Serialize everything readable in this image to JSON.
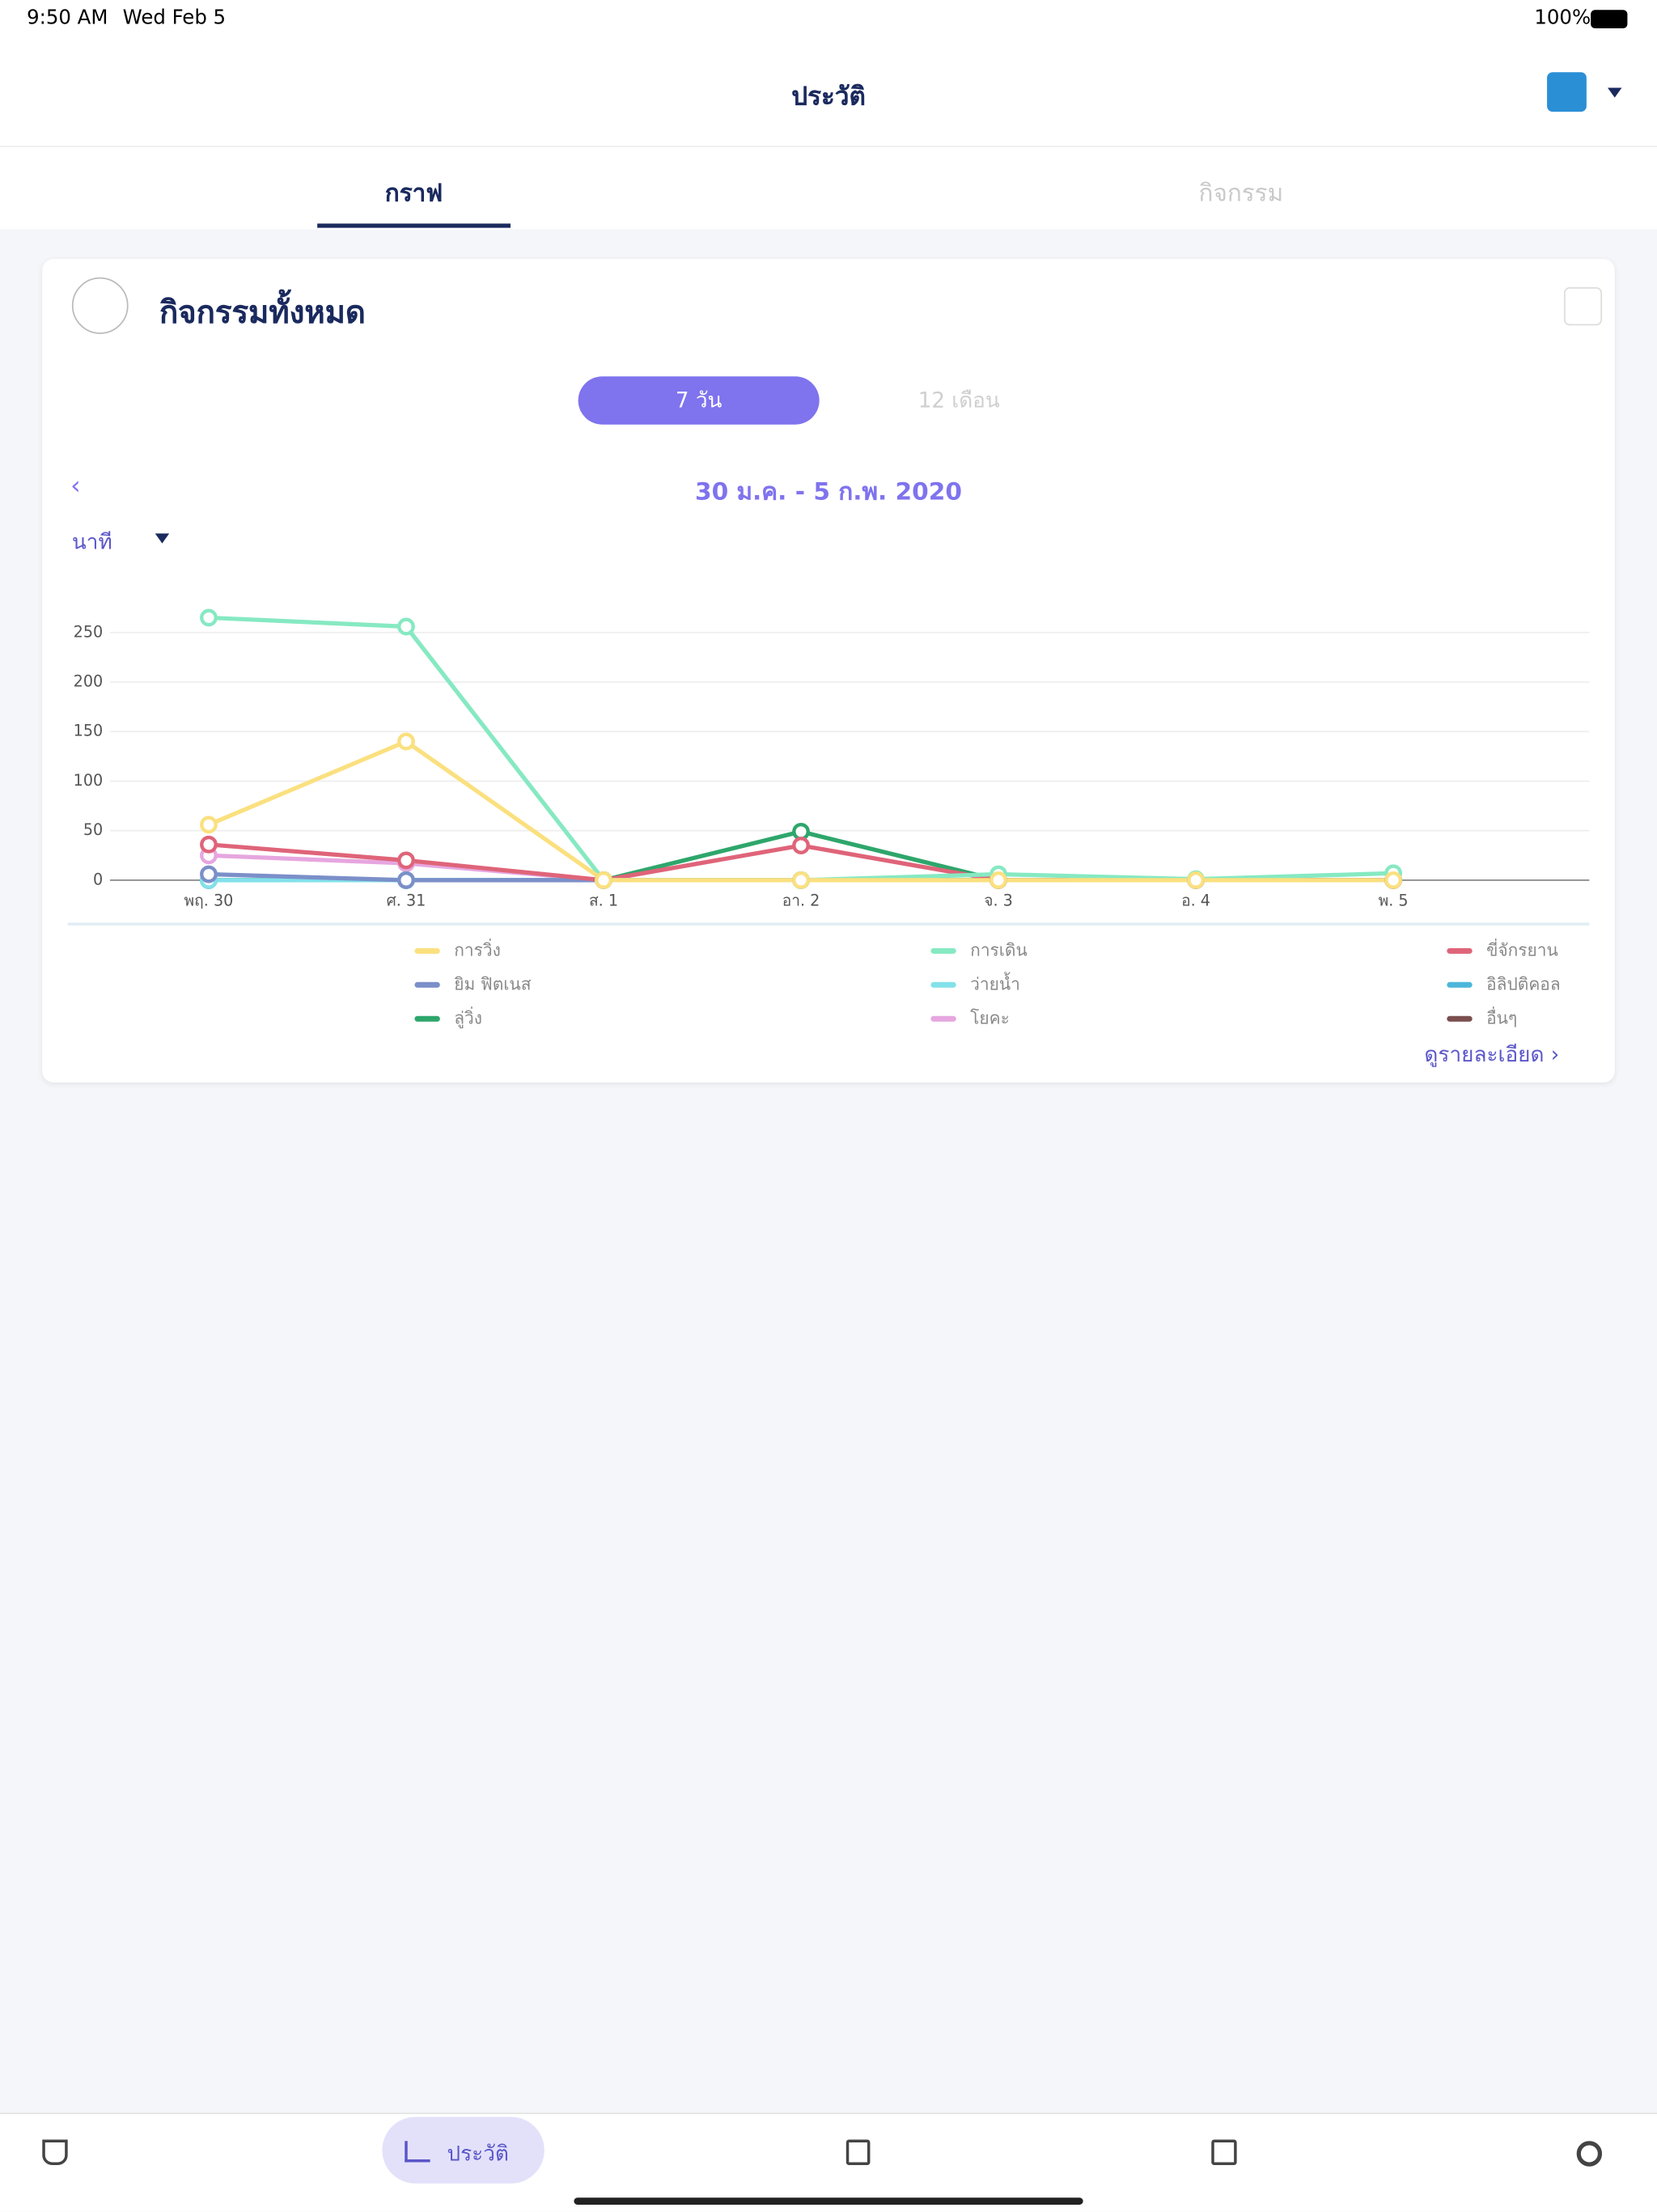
{
  "status_bar": {
    "time": "9:50 AM",
    "date": "Wed Feb 5",
    "battery": "100%"
  },
  "header": {
    "title": "ประวัติ"
  },
  "tabs": [
    "กราฟ",
    "กิจกรรม"
  ],
  "card": {
    "title": "กิจกรรมทั้งหมด",
    "range_options": [
      "7 วัน",
      "12 เดือน"
    ],
    "date_range": "30 ม.ค. - 5 ก.พ. 2020",
    "unit": "นาที",
    "details_link": "ดูรายละเอียด"
  },
  "chart_data": {
    "type": "line",
    "categories": [
      "พฤ. 30",
      "ศ. 31",
      "ส. 1",
      "อา. 2",
      "จ. 3",
      "อ. 4",
      "พ. 5"
    ],
    "ylim": [
      0,
      280
    ],
    "yticks": [
      0,
      50,
      100,
      150,
      200,
      250
    ],
    "grid": true,
    "series": [
      {
        "name": "การวิ่ง",
        "color": "#fbe07f",
        "values": [
          56,
          140,
          0,
          0,
          0,
          0,
          0
        ]
      },
      {
        "name": "การเดิน",
        "color": "#86e9c2",
        "values": [
          265,
          256,
          0,
          0,
          6,
          1,
          7
        ]
      },
      {
        "name": "ขี่จักรยาน",
        "color": "#df6479",
        "values": [
          36,
          20,
          0,
          35,
          0,
          0,
          0
        ]
      },
      {
        "name": "ยิม ฟิตเนส",
        "color": "#7b8fc9",
        "values": [
          6,
          0,
          0,
          0,
          0,
          0,
          0
        ]
      },
      {
        "name": "ว่ายน้ำ",
        "color": "#82e1ea",
        "values": [
          0,
          0,
          0,
          0,
          0,
          0,
          0
        ]
      },
      {
        "name": "อิลิปติคอล",
        "color": "#4cb7da",
        "values": [
          0,
          0,
          0,
          0,
          0,
          0,
          0
        ]
      },
      {
        "name": "ลู่วิ่ง",
        "color": "#2ea66b",
        "values": [
          0,
          0,
          0,
          49,
          0,
          0,
          0
        ]
      },
      {
        "name": "โยคะ",
        "color": "#e6a6df",
        "values": [
          25,
          17,
          0,
          0,
          0,
          0,
          0
        ]
      },
      {
        "name": "อื่นๆ",
        "color": "#7b4f4f",
        "values": [
          0,
          0,
          0,
          0,
          0,
          0,
          0
        ]
      }
    ]
  },
  "bottom_nav": {
    "active_label": "ประวัติ"
  }
}
